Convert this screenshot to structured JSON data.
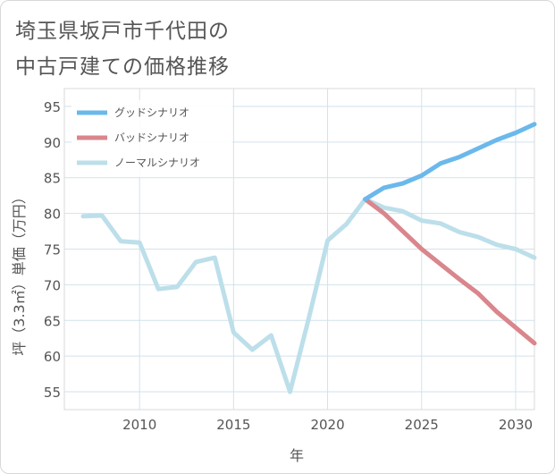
{
  "page": {
    "title_line1": "埼玉県坂戸市千代田の",
    "title_line2": "中古戸建ての価格推移"
  },
  "chart_data": {
    "type": "line",
    "title": "埼玉県坂戸市千代田の中古戸建ての価格推移",
    "xlabel": "年",
    "ylabel": "坪（3.3㎡）単価（万円）",
    "xlim": [
      2006,
      2031
    ],
    "ylim": [
      52.5,
      97.5
    ],
    "x_ticks": [
      2010,
      2015,
      2020,
      2025,
      2030
    ],
    "x_tick_labels": [
      "2010",
      "2015",
      "2020",
      "2025",
      "2030"
    ],
    "y_ticks": [
      55,
      60,
      65,
      70,
      75,
      80,
      85,
      90,
      95
    ],
    "y_tick_labels": [
      "55",
      "60",
      "65",
      "70",
      "75",
      "80",
      "85",
      "90",
      "95"
    ],
    "grid": true,
    "legend_position": "top-left",
    "series": [
      {
        "name": "グッドシナリオ",
        "color": "#6bb8ec",
        "x": [
          2022,
          2023,
          2024,
          2025,
          2026,
          2027,
          2028,
          2029,
          2030,
          2031
        ],
        "values": [
          82.0,
          83.6,
          84.2,
          85.3,
          87.0,
          87.9,
          89.1,
          90.3,
          91.3,
          92.5
        ]
      },
      {
        "name": "バッドシナリオ",
        "color": "#d9868c",
        "x": [
          2022,
          2023,
          2024,
          2025,
          2026,
          2027,
          2028,
          2029,
          2030,
          2031
        ],
        "values": [
          82.0,
          80.0,
          77.5,
          75.0,
          72.9,
          70.8,
          68.8,
          66.2,
          64.0,
          61.8
        ]
      },
      {
        "name": "ノーマルシナリオ",
        "color": "#bcdfea",
        "x": [
          2007,
          2008,
          2009,
          2010,
          2011,
          2012,
          2013,
          2014,
          2015,
          2016,
          2017,
          2018,
          2019,
          2020,
          2021,
          2022,
          2023,
          2024,
          2025,
          2026,
          2027,
          2028,
          2029,
          2030,
          2031
        ],
        "values": [
          79.6,
          79.7,
          76.1,
          75.9,
          69.4,
          69.7,
          73.2,
          73.8,
          63.3,
          60.9,
          62.9,
          55.0,
          65.3,
          76.2,
          78.5,
          82.0,
          80.8,
          80.3,
          79.0,
          78.6,
          77.4,
          76.7,
          75.6,
          75.0,
          73.8
        ]
      }
    ]
  }
}
